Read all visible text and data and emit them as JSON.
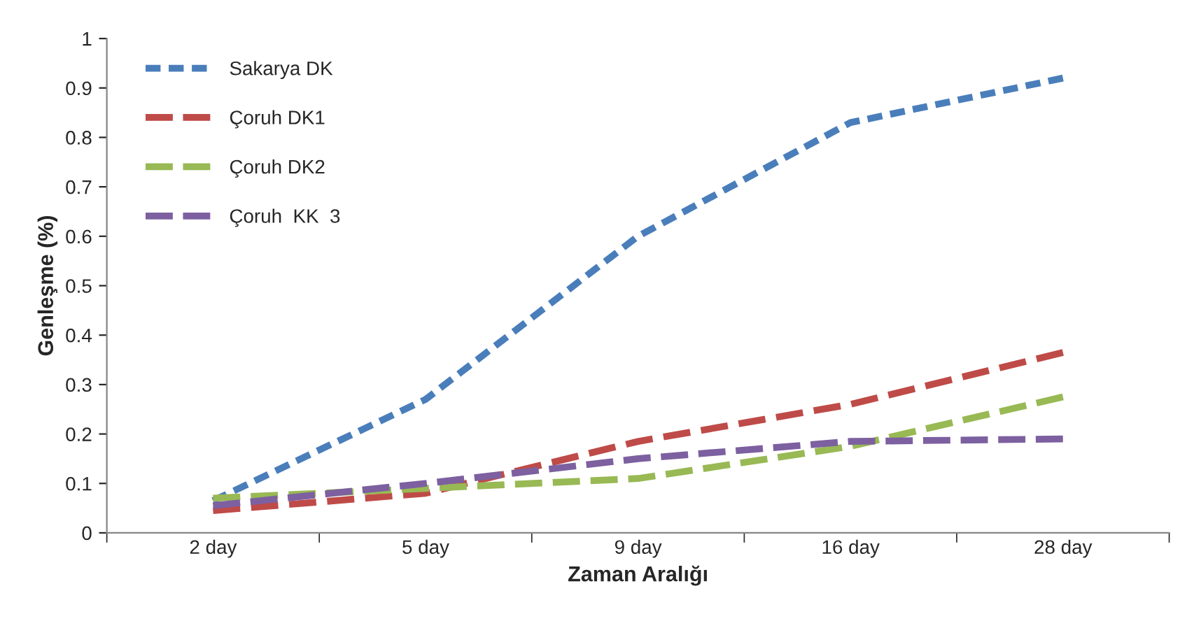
{
  "chart_data": {
    "type": "line",
    "xlabel": "Zaman Aralığı",
    "ylabel": "Genleşme (%)",
    "categories": [
      "2 day",
      "5 day",
      "9 day",
      "16 day",
      "28 day"
    ],
    "series": [
      {
        "name": "Sakarya DK",
        "color": "#4a7ebb",
        "line_style": "dotted",
        "values": [
          0.065,
          0.27,
          0.6,
          0.83,
          0.92
        ]
      },
      {
        "name": "Çoruh DK1",
        "color": "#be4b48",
        "line_style": "dashed",
        "values": [
          0.045,
          0.08,
          0.185,
          0.26,
          0.365
        ]
      },
      {
        "name": "Çoruh DK2",
        "color": "#98b954",
        "line_style": "dashed",
        "values": [
          0.07,
          0.09,
          0.11,
          0.175,
          0.275
        ]
      },
      {
        "name": "Çoruh  KK  3",
        "color": "#7d60a0",
        "line_style": "dashed",
        "values": [
          0.055,
          0.1,
          0.15,
          0.185,
          0.19
        ]
      }
    ],
    "ylim": [
      0,
      1
    ],
    "yticks": [
      0,
      0.1,
      0.2,
      0.3,
      0.4,
      0.5,
      0.6,
      0.7,
      0.8,
      0.9,
      1
    ],
    "grid": false,
    "legend": "top left",
    "marker": "none"
  }
}
